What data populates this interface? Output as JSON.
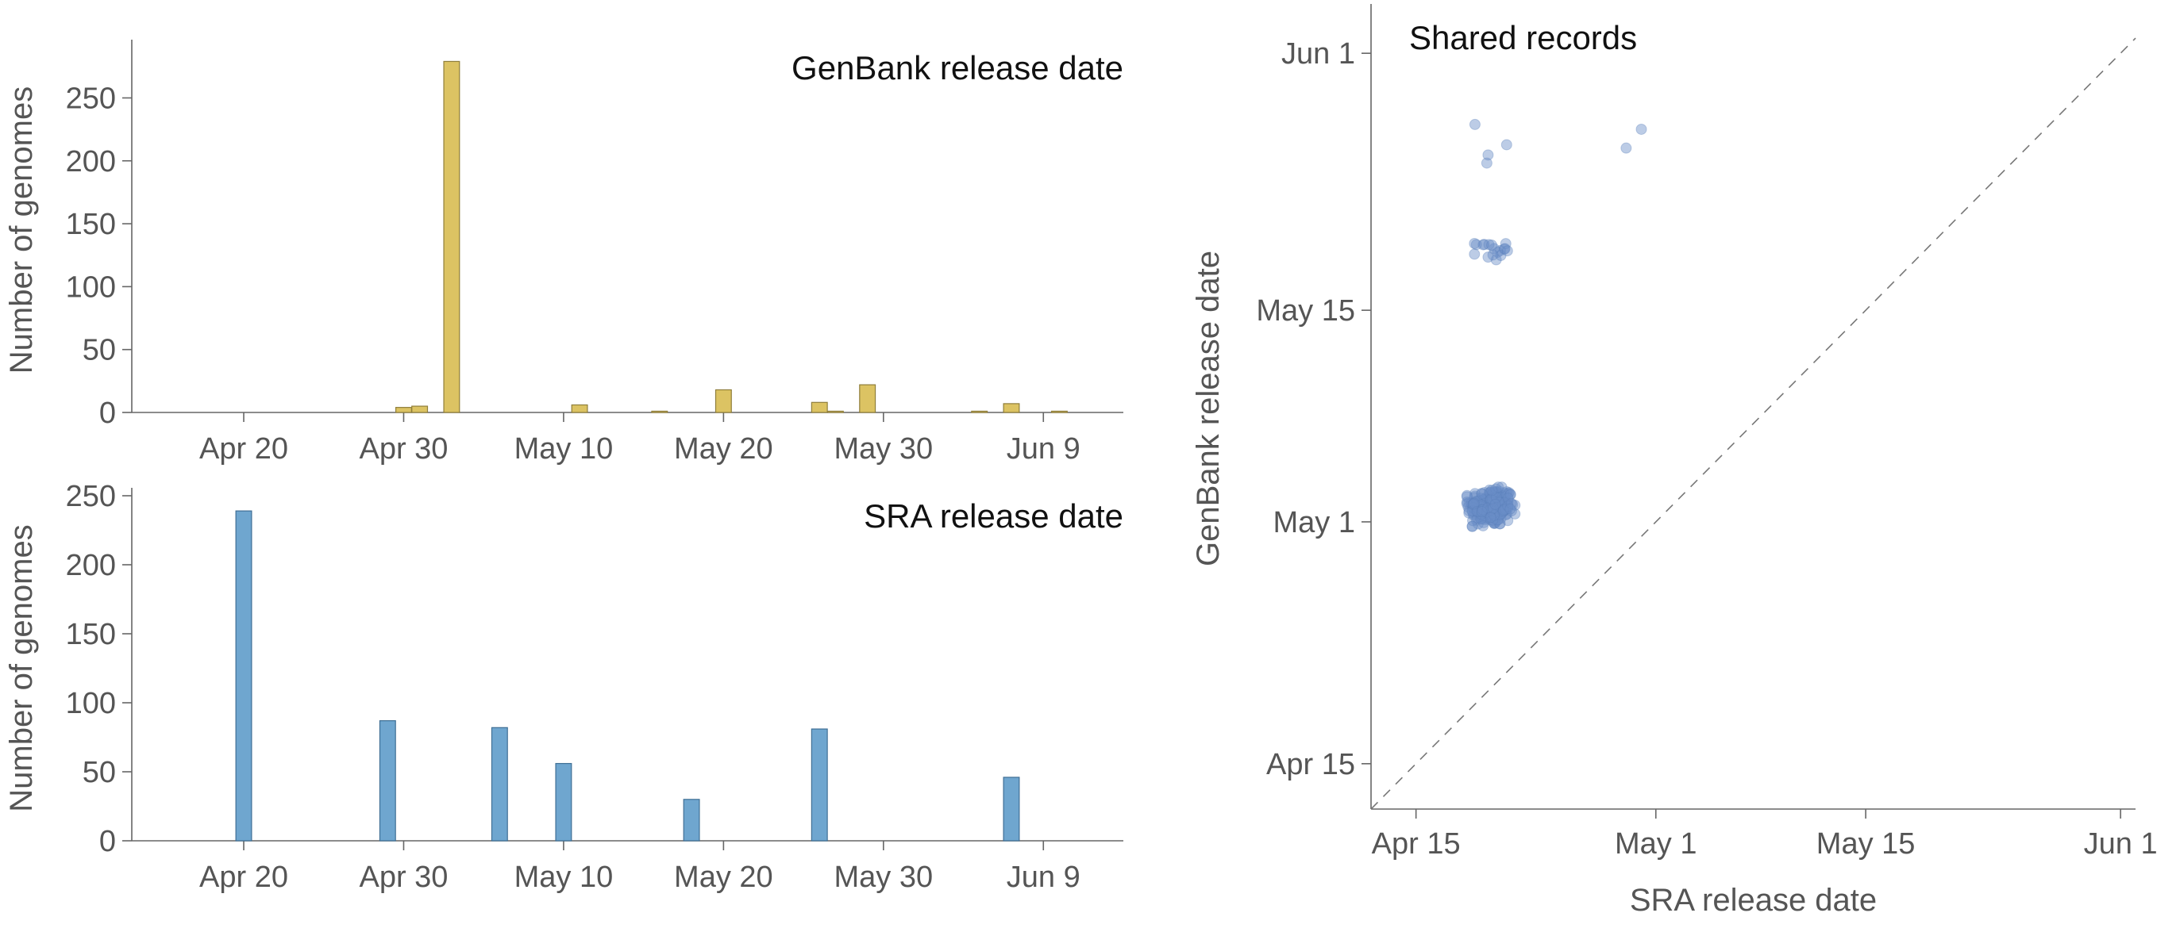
{
  "chart_data": [
    {
      "type": "bar",
      "title": "GenBank release date",
      "ylabel": "Number of genomes",
      "xlim": [
        "2020-04-13",
        "2020-06-14"
      ],
      "ylim": [
        0,
        290
      ],
      "y_ticks": [
        0,
        50,
        100,
        150,
        200,
        250
      ],
      "x_ticks": [
        {
          "date": "2020-04-20",
          "label": "Apr 20"
        },
        {
          "date": "2020-04-30",
          "label": "Apr 30"
        },
        {
          "date": "2020-05-10",
          "label": "May 10"
        },
        {
          "date": "2020-05-20",
          "label": "May 20"
        },
        {
          "date": "2020-05-30",
          "label": "May 30"
        },
        {
          "date": "2020-06-09",
          "label": "Jun 9"
        }
      ],
      "color": "#dcc363",
      "bars": [
        {
          "date": "2020-04-30",
          "value": 4
        },
        {
          "date": "2020-05-01",
          "value": 5
        },
        {
          "date": "2020-05-03",
          "value": 279
        },
        {
          "date": "2020-05-11",
          "value": 6
        },
        {
          "date": "2020-05-16",
          "value": 1
        },
        {
          "date": "2020-05-20",
          "value": 18
        },
        {
          "date": "2020-05-26",
          "value": 8
        },
        {
          "date": "2020-05-27",
          "value": 1
        },
        {
          "date": "2020-05-29",
          "value": 22
        },
        {
          "date": "2020-06-05",
          "value": 1
        },
        {
          "date": "2020-06-07",
          "value": 7
        },
        {
          "date": "2020-06-10",
          "value": 1
        }
      ]
    },
    {
      "type": "bar",
      "title": "SRA release date",
      "ylabel": "Number of genomes",
      "xlim": [
        "2020-04-13",
        "2020-06-14"
      ],
      "ylim": [
        0,
        250
      ],
      "y_ticks": [
        0,
        50,
        100,
        150,
        200,
        250
      ],
      "x_ticks": [
        {
          "date": "2020-04-20",
          "label": "Apr 20"
        },
        {
          "date": "2020-04-30",
          "label": "Apr 30"
        },
        {
          "date": "2020-05-10",
          "label": "May 10"
        },
        {
          "date": "2020-05-20",
          "label": "May 20"
        },
        {
          "date": "2020-05-30",
          "label": "May 30"
        },
        {
          "date": "2020-06-09",
          "label": "Jun 9"
        }
      ],
      "color": "#6fa6cf",
      "bars": [
        {
          "date": "2020-04-20",
          "value": 239
        },
        {
          "date": "2020-04-29",
          "value": 87
        },
        {
          "date": "2020-05-06",
          "value": 82
        },
        {
          "date": "2020-05-10",
          "value": 56
        },
        {
          "date": "2020-05-18",
          "value": 30
        },
        {
          "date": "2020-05-26",
          "value": 81
        },
        {
          "date": "2020-06-07",
          "value": 46
        }
      ]
    },
    {
      "type": "scatter",
      "title": "Shared records",
      "xlabel": "SRA release date",
      "ylabel": "GenBank release date",
      "xlim": [
        "2020-04-12",
        "2020-06-02"
      ],
      "ylim": [
        -3,
        50
      ],
      "y_axis_unit": "days after 2020-04-15",
      "x_ticks": [
        {
          "date": "2020-04-15",
          "label": "Apr 15"
        },
        {
          "date": "2020-05-01",
          "label": "May 1"
        },
        {
          "date": "2020-05-15",
          "label": "May 15"
        },
        {
          "date": "2020-06-01",
          "label": "Jun 1"
        }
      ],
      "y_ticks": [
        {
          "date": "2020-04-15",
          "label": "Apr 15"
        },
        {
          "date": "2020-05-01",
          "label": "May 1"
        },
        {
          "date": "2020-05-15",
          "label": "May 15"
        },
        {
          "date": "2020-06-01",
          "label": "Jun 1"
        }
      ],
      "diagonal": "dashed y = x",
      "clusters": [
        {
          "x_date": "2020-04-20",
          "y_date": "2020-05-02",
          "x_spread_days": 1.6,
          "y_spread_days": 1.3,
          "count": 240
        },
        {
          "x_date": "2020-04-20",
          "y_date": "2020-05-19",
          "x_spread_days": 1.1,
          "y_spread_days": 0.7,
          "count": 18
        }
      ],
      "points": [
        {
          "x_date": "2020-04-19",
          "y_date": "2020-05-27"
        },
        {
          "x_date": "2020-04-20",
          "y_date": "2020-05-25"
        },
        {
          "x_date": "2020-04-20",
          "y_date": "2020-05-25"
        },
        {
          "x_date": "2020-04-21",
          "y_date": "2020-05-26"
        },
        {
          "x_date": "2020-04-29",
          "y_date": "2020-05-26"
        },
        {
          "x_date": "2020-04-30",
          "y_date": "2020-05-27"
        }
      ]
    }
  ]
}
